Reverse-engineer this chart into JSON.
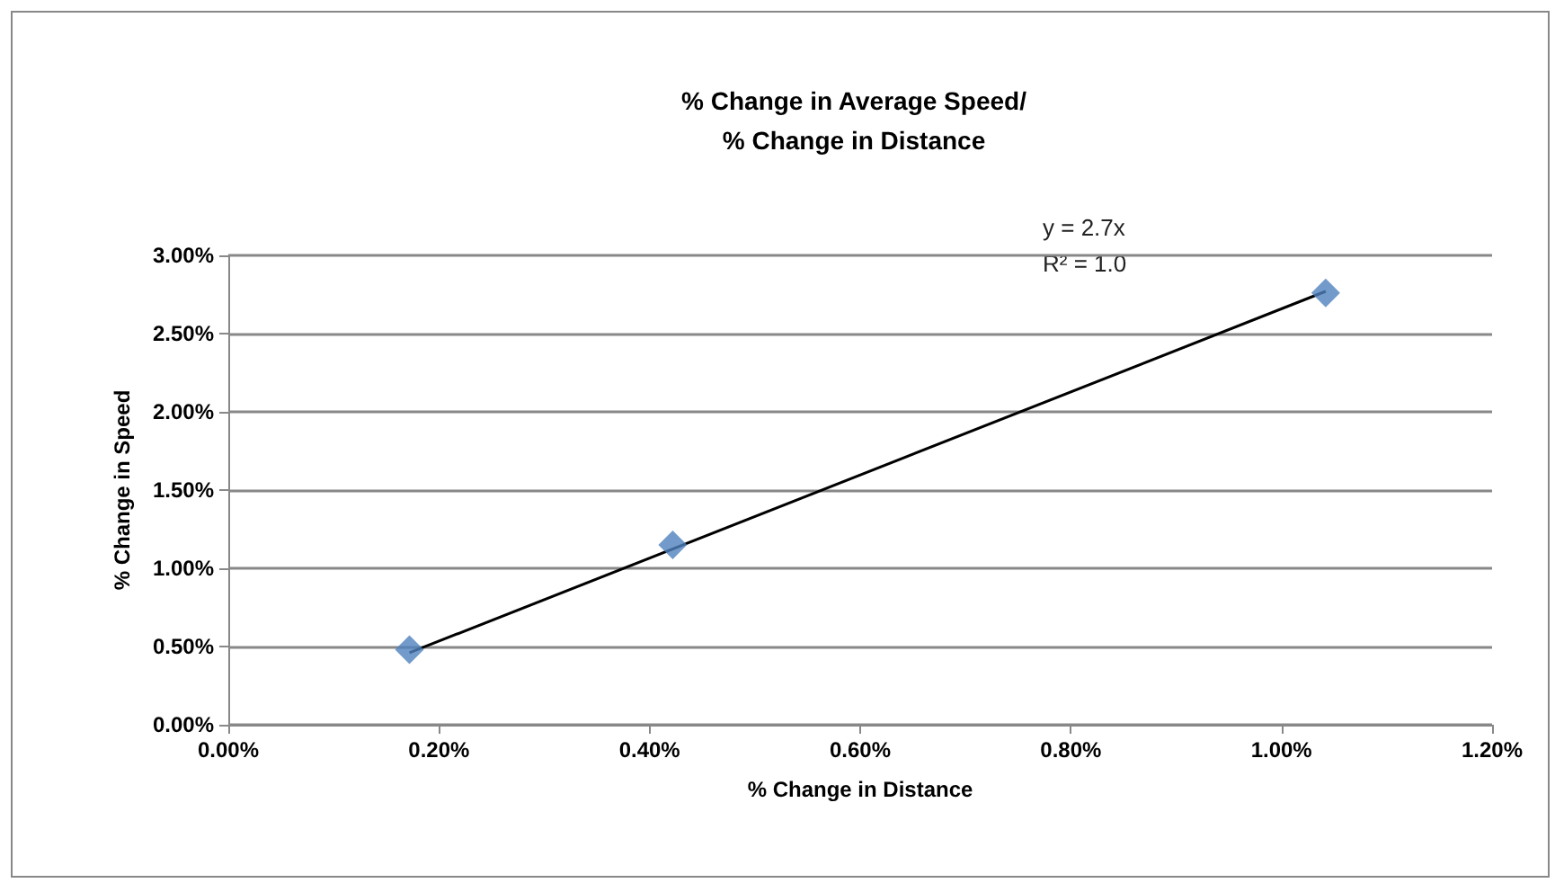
{
  "chart_data": {
    "type": "scatter",
    "title": "% Change in Average Speed/\n% Change in Distance",
    "xlabel": "% Change in Distance",
    "ylabel": "% Change in Speed",
    "x": [
      0.172,
      0.422,
      1.042
    ],
    "marker": "diamond",
    "grid": "y",
    "series": [
      {
        "color": "#4f81bd",
        "values": [
          0.48,
          1.15,
          2.76
        ]
      },
      {
        "type": "line",
        "color": "#000000",
        "marker": "none",
        "x": [
          0.172,
          1.042
        ],
        "values": [
          0.46,
          2.77
        ]
      }
    ],
    "xlim": [
      0,
      1.2
    ],
    "xticks": [
      {
        "value": 0,
        "label": "0.00%"
      },
      {
        "value": 0.2,
        "label": "0.20%"
      },
      {
        "value": 0.4,
        "label": "0.40%"
      },
      {
        "value": 0.6,
        "label": "0.60%"
      },
      {
        "value": 0.8,
        "label": "0.80%"
      },
      {
        "value": 1.0,
        "label": "1.00%"
      },
      {
        "value": 1.2,
        "label": "1.20%"
      }
    ],
    "ylim": [
      0,
      3
    ],
    "yticks": [
      {
        "value": 0,
        "label": "0.00%"
      },
      {
        "value": 0.5,
        "label": "0.50%"
      },
      {
        "value": 1.0,
        "label": "1.00%"
      },
      {
        "value": 1.5,
        "label": "1.50%"
      },
      {
        "value": 2.0,
        "label": "2.00%"
      },
      {
        "value": 2.5,
        "label": "2.50%"
      },
      {
        "value": 3.0,
        "label": "3.00%"
      }
    ],
    "annotations": [
      "y = 2.7x",
      "R² = 1.0"
    ]
  }
}
